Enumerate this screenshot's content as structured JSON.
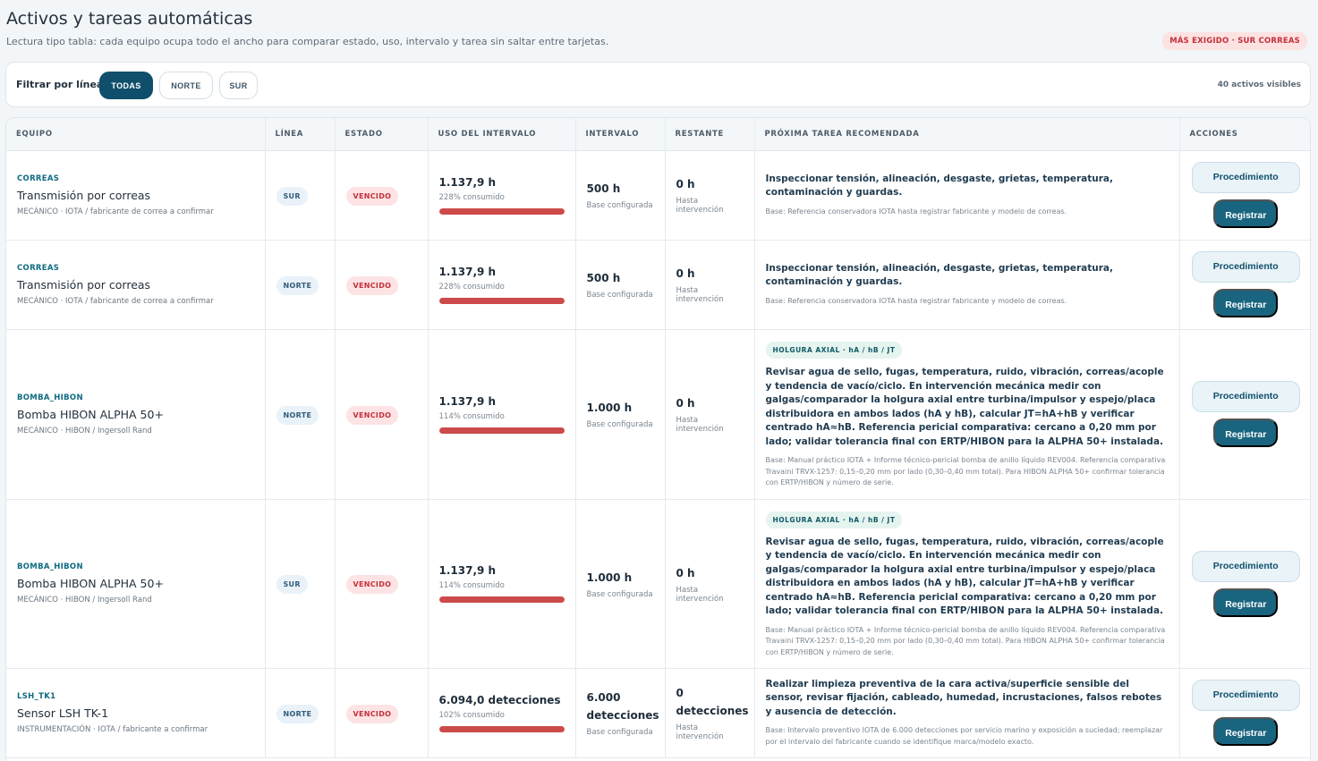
{
  "header": {
    "title": "Activos y tareas automáticas",
    "subtitle": "Lectura tipo tabla: cada equipo ocupa todo el ancho para comparar estado, uso, intervalo y tarea sin saltar entre tarjetas.",
    "badge": "MÁS EXIGIDO · SUR CORREAS"
  },
  "filter": {
    "label": "Filtrar por línea:",
    "options": [
      "TODAS",
      "NORTE",
      "SUR"
    ],
    "selected": "TODAS",
    "count": "40 activos visibles"
  },
  "columns": [
    "EQUIPO",
    "LÍNEA",
    "ESTADO",
    "USO DEL INTERVALO",
    "INTERVALO",
    "RESTANTE",
    "PRÓXIMA TAREA RECOMENDADA",
    "ACCIONES"
  ],
  "actions": {
    "procedure": "Procedimiento",
    "register": "Registrar"
  },
  "colors": {
    "accent": "#0f4f6b",
    "overdue": "#c4313b",
    "bar": "#cd4a4a"
  },
  "rows": [
    {
      "code": "CORREAS",
      "name": "Transmisión por correas",
      "meta": "MECÁNICO · IOTA / fabricante de correa a confirmar",
      "line": "SUR",
      "status": "VENCIDO",
      "use_value": "1.137,9 h",
      "use_pct": "228% consumido",
      "use_fraction": 1.0,
      "interval": "500 h",
      "interval_note": "Base configurada",
      "remaining": "0 h",
      "remaining_note": "Hasta intervención",
      "task_tag": "",
      "task": "Inspeccionar tensión, alineación, desgaste, grietas, temperatura, contaminación y guardas.",
      "task_base": "Base: Referencia conservadora IOTA hasta registrar fabricante y modelo de correas."
    },
    {
      "code": "CORREAS",
      "name": "Transmisión por correas",
      "meta": "MECÁNICO · IOTA / fabricante de correa a confirmar",
      "line": "NORTE",
      "status": "VENCIDO",
      "use_value": "1.137,9 h",
      "use_pct": "228% consumido",
      "use_fraction": 1.0,
      "interval": "500 h",
      "interval_note": "Base configurada",
      "remaining": "0 h",
      "remaining_note": "Hasta intervención",
      "task_tag": "",
      "task": "Inspeccionar tensión, alineación, desgaste, grietas, temperatura, contaminación y guardas.",
      "task_base": "Base: Referencia conservadora IOTA hasta registrar fabricante y modelo de correas."
    },
    {
      "code": "BOMBA_HIBON",
      "name": "Bomba HIBON ALPHA 50+",
      "meta": "MECÁNICO · HIBON / Ingersoll Rand",
      "line": "NORTE",
      "status": "VENCIDO",
      "use_value": "1.137,9 h",
      "use_pct": "114% consumido",
      "use_fraction": 1.0,
      "interval": "1.000 h",
      "interval_note": "Base configurada",
      "remaining": "0 h",
      "remaining_note": "Hasta intervención",
      "task_tag": "HOLGURA AXIAL · hA / hB / JT",
      "task": "Revisar agua de sello, fugas, temperatura, ruido, vibración, correas/acople y tendencia de vacío/ciclo. En intervención mecánica medir con galgas/comparador la holgura axial entre turbina/impulsor y espejo/placa distribuidora en ambos lados (hA y hB), calcular JT=hA+hB y verificar centrado hA≈hB. Referencia pericial comparativa: cercano a 0,20 mm por lado; validar tolerancia final con ERTP/HIBON para la ALPHA 50+ instalada.",
      "task_base": "Base: Manual práctico IOTA + Informe técnico-pericial bomba de anillo líquido REV004. Referencia comparativa Travaini TRVX-1257: 0,15–0,20 mm por lado (0,30–0,40 mm total). Para HIBON ALPHA 50+ confirmar tolerancia con ERTP/HIBON y número de serie."
    },
    {
      "code": "BOMBA_HIBON",
      "name": "Bomba HIBON ALPHA 50+",
      "meta": "MECÁNICO · HIBON / Ingersoll Rand",
      "line": "SUR",
      "status": "VENCIDO",
      "use_value": "1.137,9 h",
      "use_pct": "114% consumido",
      "use_fraction": 1.0,
      "interval": "1.000 h",
      "interval_note": "Base configurada",
      "remaining": "0 h",
      "remaining_note": "Hasta intervención",
      "task_tag": "HOLGURA AXIAL · hA / hB / JT",
      "task": "Revisar agua de sello, fugas, temperatura, ruido, vibración, correas/acople y tendencia de vacío/ciclo. En intervención mecánica medir con galgas/comparador la holgura axial entre turbina/impulsor y espejo/placa distribuidora en ambos lados (hA y hB), calcular JT=hA+hB y verificar centrado hA≈hB. Referencia pericial comparativa: cercano a 0,20 mm por lado; validar tolerancia final con ERTP/HIBON para la ALPHA 50+ instalada.",
      "task_base": "Base: Manual práctico IOTA + Informe técnico-pericial bomba de anillo líquido REV004. Referencia comparativa Travaini TRVX-1257: 0,15–0,20 mm por lado (0,30–0,40 mm total). Para HIBON ALPHA 50+ confirmar tolerancia con ERTP/HIBON y número de serie."
    },
    {
      "code": "LSH_TK1",
      "name": "Sensor LSH TK-1",
      "meta": "INSTRUMENTACIÓN · IOTA / fabricante a confirmar",
      "line": "NORTE",
      "status": "VENCIDO",
      "use_value": "6.094,0 detecciones",
      "use_pct": "102% consumido",
      "use_fraction": 1.0,
      "interval": "6.000 detecciones",
      "interval_note": "Base configurada",
      "remaining": "0 detecciones",
      "remaining_note": "Hasta intervención",
      "task_tag": "",
      "task": "Realizar limpieza preventiva de la cara activa/superficie sensible del sensor, revisar fijación, cableado, humedad, incrustaciones, falsos rebotes y ausencia de detección.",
      "task_base": "Base: Intervalo preventivo IOTA de 6.000 detecciones por servicio marino y exposición a suciedad; reemplazar por el intervalo del fabricante cuando se identifique marca/modelo exacto."
    }
  ]
}
